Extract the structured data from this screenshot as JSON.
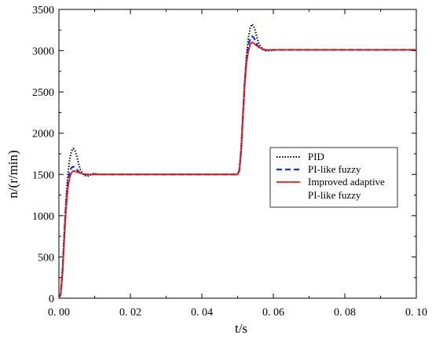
{
  "chart_data": {
    "type": "line",
    "xlabel": "t/s",
    "ylabel": "n/(r/min)",
    "xlim": [
      0,
      0.1
    ],
    "ylim": [
      0,
      3500
    ],
    "x_ticks": [
      0,
      0.02,
      0.04,
      0.06,
      0.08,
      0.1
    ],
    "x_tick_labels": [
      "0. 00",
      "0. 02",
      "0. 04",
      "0. 06",
      "0. 08",
      "0. 10"
    ],
    "y_ticks": [
      0,
      500,
      1000,
      1500,
      2000,
      2500,
      3000,
      3500
    ],
    "y_tick_labels": [
      "0",
      "500",
      "1000",
      "1500",
      "2000",
      "2500",
      "3000",
      "3500"
    ],
    "grid": false,
    "legend_position": "right",
    "series": [
      {
        "name": "PID",
        "color": "#000000",
        "style": "dotted",
        "x": [
          0,
          0.0005,
          0.001,
          0.0015,
          0.002,
          0.0025,
          0.003,
          0.0035,
          0.004,
          0.0045,
          0.005,
          0.0055,
          0.006,
          0.007,
          0.008,
          0.009,
          0.01,
          0.011,
          0.012,
          0.014,
          0.02,
          0.03,
          0.04,
          0.05,
          0.0505,
          0.051,
          0.0515,
          0.052,
          0.0525,
          0.053,
          0.0535,
          0.054,
          0.0545,
          0.055,
          0.0555,
          0.056,
          0.057,
          0.058,
          0.059,
          0.06,
          0.061,
          0.062,
          0.064,
          0.07,
          0.08,
          0.09,
          0.1
        ],
        "y": [
          0,
          60,
          350,
          800,
          1200,
          1500,
          1680,
          1780,
          1815,
          1790,
          1720,
          1630,
          1560,
          1490,
          1480,
          1495,
          1505,
          1500,
          1500,
          1500,
          1500,
          1500,
          1500,
          1500,
          1560,
          1830,
          2250,
          2650,
          2950,
          3150,
          3270,
          3320,
          3300,
          3230,
          3150,
          3080,
          3020,
          3000,
          3000,
          3005,
          3010,
          3010,
          3010,
          3010,
          3010,
          3010,
          3010
        ]
      },
      {
        "name": "PI-like fuzzy",
        "color": "#1f2be0",
        "style": "dashed",
        "x": [
          0,
          0.0005,
          0.001,
          0.0015,
          0.002,
          0.0025,
          0.003,
          0.0035,
          0.004,
          0.0045,
          0.005,
          0.0055,
          0.006,
          0.007,
          0.008,
          0.009,
          0.01,
          0.012,
          0.02,
          0.03,
          0.04,
          0.05,
          0.0505,
          0.051,
          0.0515,
          0.052,
          0.0525,
          0.053,
          0.0535,
          0.054,
          0.0545,
          0.055,
          0.0555,
          0.056,
          0.057,
          0.058,
          0.06,
          0.07,
          0.08,
          0.09,
          0.1
        ],
        "y": [
          0,
          50,
          320,
          760,
          1150,
          1400,
          1530,
          1580,
          1595,
          1585,
          1560,
          1535,
          1515,
          1500,
          1500,
          1505,
          1505,
          1500,
          1500,
          1500,
          1500,
          1500,
          1550,
          1800,
          2220,
          2620,
          2900,
          3060,
          3140,
          3175,
          3160,
          3120,
          3070,
          3040,
          3015,
          3005,
          3010,
          3010,
          3010,
          3010,
          3010
        ]
      },
      {
        "name": "Improved adaptive PI-like fuzzy",
        "color": "#e0191b",
        "style": "solid",
        "x": [
          0,
          0.0005,
          0.001,
          0.0015,
          0.002,
          0.0025,
          0.003,
          0.0035,
          0.004,
          0.0045,
          0.005,
          0.006,
          0.007,
          0.008,
          0.01,
          0.012,
          0.02,
          0.03,
          0.04,
          0.05,
          0.0505,
          0.051,
          0.0515,
          0.052,
          0.0525,
          0.053,
          0.0535,
          0.054,
          0.0545,
          0.055,
          0.056,
          0.057,
          0.058,
          0.06,
          0.07,
          0.08,
          0.09,
          0.1
        ],
        "y": [
          0,
          40,
          290,
          700,
          1080,
          1330,
          1460,
          1520,
          1540,
          1540,
          1530,
          1515,
          1505,
          1500,
          1500,
          1500,
          1500,
          1500,
          1500,
          1500,
          1540,
          1760,
          2180,
          2580,
          2850,
          2990,
          3070,
          3100,
          3095,
          3070,
          3040,
          3020,
          3010,
          3010,
          3010,
          3010,
          3010,
          3010
        ]
      }
    ],
    "legend_entries": [
      "PID",
      "PI-like fuzzy",
      "Improved adaptive",
      "PI-like fuzzy"
    ]
  }
}
